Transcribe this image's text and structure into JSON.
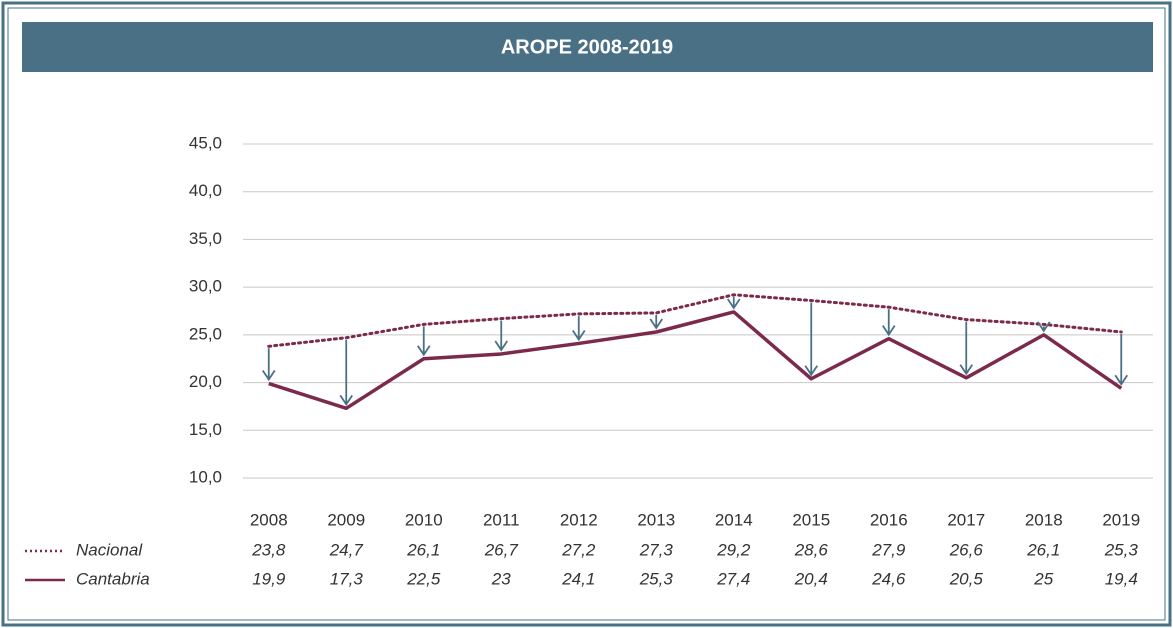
{
  "chart_data": {
    "type": "line",
    "title": "AROPE 2008-2019",
    "categories": [
      "2008",
      "2009",
      "2010",
      "2011",
      "2012",
      "2013",
      "2014",
      "2015",
      "2016",
      "2017",
      "2018",
      "2019"
    ],
    "series": [
      {
        "name": "Nacional",
        "color": "#7b2a4c",
        "style": "dotted",
        "values": [
          23.8,
          24.7,
          26.1,
          26.7,
          27.2,
          27.3,
          29.2,
          28.6,
          27.9,
          26.6,
          26.1,
          25.3
        ],
        "value_labels": [
          "23,8",
          "24,7",
          "26,1",
          "26,7",
          "27,2",
          "27,3",
          "29,2",
          "28,6",
          "27,9",
          "26,6",
          "26,1",
          "25,3"
        ]
      },
      {
        "name": "Cantabria",
        "color": "#7b2a4c",
        "style": "solid",
        "values": [
          19.9,
          17.3,
          22.5,
          23,
          24.1,
          25.3,
          27.4,
          20.4,
          24.6,
          20.5,
          25,
          19.4
        ],
        "value_labels": [
          "19,9",
          "17,3",
          "22,5",
          "23",
          "24,1",
          "25,3",
          "27,4",
          "20,4",
          "24,6",
          "20,5",
          "25",
          "19,4"
        ]
      }
    ],
    "arrow_color": "#4a7085",
    "ylim": [
      10,
      45
    ],
    "yticks": [
      {
        "value": 10,
        "label": "10,0"
      },
      {
        "value": 15,
        "label": "15,0"
      },
      {
        "value": 20,
        "label": "20,0"
      },
      {
        "value": 25,
        "label": "25,0"
      },
      {
        "value": 30,
        "label": "30,0"
      },
      {
        "value": 35,
        "label": "35,0"
      },
      {
        "value": 40,
        "label": "40,0"
      },
      {
        "value": 45,
        "label": "45,0"
      }
    ],
    "grid": true
  }
}
